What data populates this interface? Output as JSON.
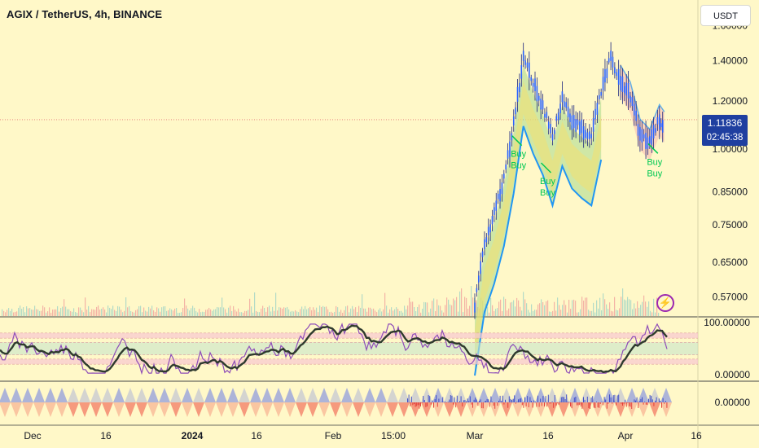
{
  "header": {
    "title": "AGIX / TetherUS, 4h, BINANCE",
    "currency_button": "USDT"
  },
  "price_tag": {
    "price": "1.11836",
    "countdown": "02:45:38"
  },
  "signals": [
    {
      "label": "Buy",
      "label2": "Buy",
      "x": "Mar 10",
      "y": 1.02
    },
    {
      "label": "Buy",
      "label2": "Buy",
      "x": "Mar 16",
      "y": 0.92
    },
    {
      "label": "Buy",
      "label2": "Buy",
      "x": "Apr 7",
      "y": 0.99
    }
  ],
  "colors": {
    "background": "#FFF8C8",
    "candle_body": "#2962FF",
    "cloud_green": "#A8D88A",
    "cloud_pink": "#F8B8B0",
    "cloud_line": "#2196F3",
    "signal": "#00C853",
    "osc_purple": "#8E4DB8",
    "osc_dark": "#2E3A2E",
    "osc_green_band": "#C8E6C9",
    "osc_pink_band": "#F8C8D0",
    "tri_blue": "#9FA8DA",
    "tri_red": "#F48A70"
  },
  "chart_data": [
    {
      "type": "line",
      "title": "AGIX / TetherUS, 4h, BINANCE",
      "scale": "log",
      "y_ticks": [
        1.6,
        1.4,
        1.2,
        1.0,
        0.85,
        0.75,
        0.65,
        0.57
      ],
      "y_tick_labels": [
        "1.60000",
        "1.40000",
        "1.20000",
        "1.00000",
        "0.85000",
        "0.75000",
        "0.65000",
        "0.57000"
      ],
      "x_tick_labels": [
        "Dec",
        "16",
        "2024",
        "16",
        "Feb",
        "15:00",
        "Mar",
        "16",
        "Apr",
        "16"
      ],
      "ylim": [
        0.53,
        1.72
      ],
      "last_price": 1.11836,
      "series": [
        {
          "name": "",
          "x": [
            "Mar 1",
            "Mar 3",
            "Mar 5",
            "Mar 7",
            "Mar 9",
            "Mar 11",
            "Mar 13",
            "Mar 15",
            "Mar 17",
            "Mar 19",
            "Mar 21",
            "Mar 23",
            "Mar 25",
            "Mar 27",
            "Mar 29",
            "Mar 31",
            "Apr 2",
            "Apr 4",
            "Apr 6",
            "Apr 8",
            "Apr 9"
          ],
          "values": [
            0.55,
            0.7,
            0.78,
            0.9,
            1.1,
            1.42,
            1.28,
            1.18,
            1.05,
            1.22,
            1.12,
            1.08,
            1.05,
            1.25,
            1.42,
            1.3,
            1.22,
            1.06,
            1.02,
            1.12,
            1.09
          ]
        }
      ]
    },
    {
      "type": "line",
      "y_ticks": [
        100,
        0
      ],
      "y_tick_labels": [
        "100.00000",
        "0.00000"
      ],
      "ylim": [
        0,
        100
      ]
    },
    {
      "type": "area",
      "y_ticks": [
        0
      ],
      "y_tick_labels": [
        "0.00000"
      ]
    }
  ]
}
